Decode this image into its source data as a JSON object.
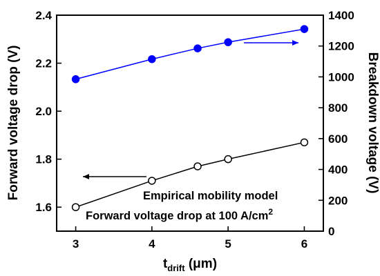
{
  "chart_data": {
    "type": "line",
    "xlabel": {
      "main": "t",
      "sub": "drift",
      "unit": " (μm)"
    },
    "ylabel_left": "Forward voltage drop (V)",
    "ylabel_right": "Breakdown voltage (V)",
    "xlim": [
      2.75,
      6.25
    ],
    "ylim_left": [
      1.5,
      2.4
    ],
    "ylim_right": [
      0,
      1400
    ],
    "x_ticks": [
      3,
      4,
      5,
      6
    ],
    "y_left_ticks": [
      "1.6",
      "1.8",
      "2.0",
      "2.2",
      "2.4"
    ],
    "y_right_ticks": [
      "0",
      "200",
      "400",
      "600",
      "800",
      "1000",
      "1200",
      "1400"
    ],
    "series": [
      {
        "axis": "left",
        "color": "#000000",
        "marker": "open-circle",
        "x": [
          3,
          4,
          4.6,
          5,
          6
        ],
        "y": [
          1.6,
          1.71,
          1.77,
          1.8,
          1.87
        ]
      },
      {
        "axis": "right",
        "color": "#0000ff",
        "marker": "filled-circle",
        "x": [
          3,
          4,
          4.6,
          5,
          6
        ],
        "y": [
          985,
          1115,
          1185,
          1225,
          1310
        ]
      }
    ],
    "annotations": {
      "line1": "Empirical mobility model",
      "line2": "Forward voltage drop at 100 A/cm",
      "line2_sup": "2"
    },
    "arrows": [
      {
        "name": "left-axis-arrow",
        "direction": "left",
        "color": "#000000"
      },
      {
        "name": "right-axis-arrow",
        "direction": "right",
        "color": "#0000ff"
      }
    ]
  }
}
